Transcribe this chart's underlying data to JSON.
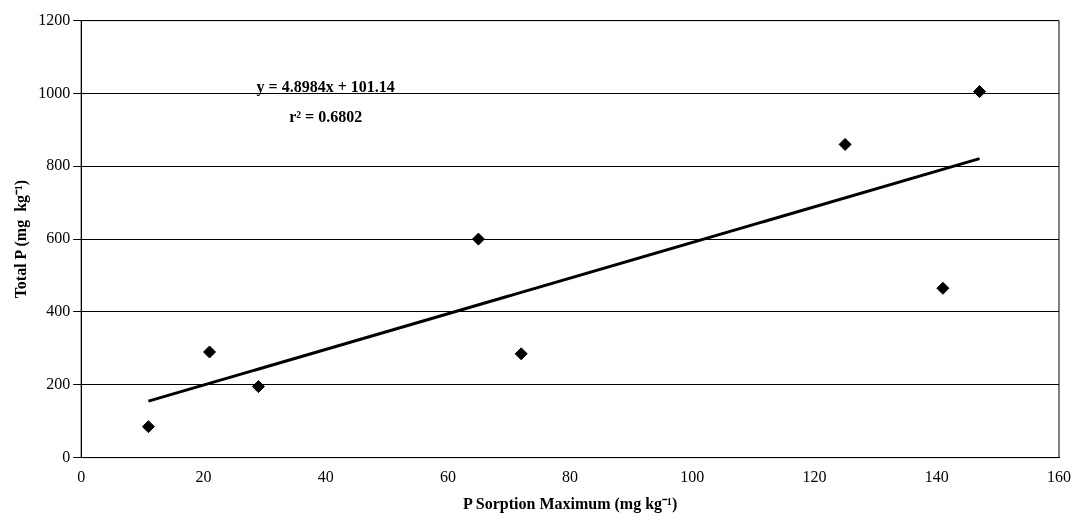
{
  "chart_data": {
    "type": "scatter",
    "xlabel": "P Sorption Maximum (mg kg⁻¹)",
    "ylabel": "Total P (mg  kg⁻¹)",
    "annotations": [
      "y = 4.8984x + 101.14",
      "r² = 0.6802"
    ],
    "series": [
      {
        "color": "#000000",
        "marker": "diamond",
        "x": [
          11,
          21,
          29,
          65,
          72,
          125,
          141,
          147
        ],
        "values": [
          85,
          290,
          195,
          600,
          285,
          860,
          465,
          1005
        ]
      },
      {
        "type": "line",
        "color": "#000000",
        "marker": "none",
        "line_style": "solid",
        "x": [
          11,
          147
        ],
        "values": [
          155,
          821
        ]
      }
    ],
    "xlim": [
      0,
      160
    ],
    "xticks": [
      0,
      20,
      40,
      60,
      80,
      100,
      120,
      140,
      160
    ],
    "ylim": [
      0,
      1200
    ],
    "yticks": [
      0,
      200,
      400,
      600,
      800,
      1000,
      1200
    ],
    "grid": "y",
    "legend": false
  }
}
